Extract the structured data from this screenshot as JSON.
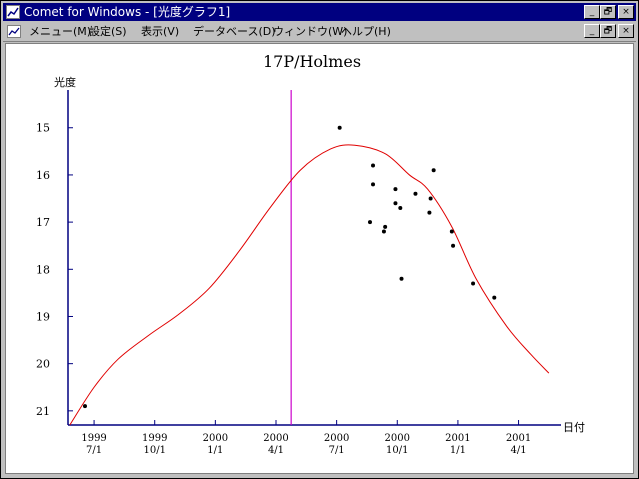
{
  "window": {
    "title": "Comet for Windows - [光度グラフ1]",
    "controls": {
      "minimize": "_",
      "restore": "🗗",
      "close": "×"
    }
  },
  "menubar": {
    "items": [
      {
        "label": "メニュー(M)"
      },
      {
        "label": "設定(S)"
      },
      {
        "label": "表示(V)"
      },
      {
        "label": "データベース(D)"
      },
      {
        "label": "ウィンドウ(W)"
      },
      {
        "label": "ヘルプ(H)"
      }
    ]
  },
  "chart_data": {
    "type": "scatter",
    "title": "17P/Holmes",
    "ylabel": "光度",
    "xlabel": "日付",
    "x_ticks": [
      {
        "year": "1999",
        "date": "7/1"
      },
      {
        "year": "1999",
        "date": "10/1"
      },
      {
        "year": "2000",
        "date": "1/1"
      },
      {
        "year": "2000",
        "date": "4/1"
      },
      {
        "year": "2000",
        "date": "7/1"
      },
      {
        "year": "2000",
        "date": "10/1"
      },
      {
        "year": "2001",
        "date": "1/1"
      },
      {
        "year": "2001",
        "date": "4/1"
      }
    ],
    "y_ticks": [
      "15",
      "16",
      "17",
      "18",
      "19",
      "20",
      "21"
    ],
    "ylim": [
      21.3,
      14.2
    ],
    "xlim": [
      -0.43,
      7.7
    ],
    "grid": false,
    "marker_x": 3.25,
    "points": [
      {
        "x": -0.15,
        "y": 20.9
      },
      {
        "x": 4.05,
        "y": 15.0
      },
      {
        "x": 4.6,
        "y": 15.8
      },
      {
        "x": 4.6,
        "y": 16.2
      },
      {
        "x": 4.55,
        "y": 17.0
      },
      {
        "x": 4.8,
        "y": 17.1
      },
      {
        "x": 4.78,
        "y": 17.2
      },
      {
        "x": 4.97,
        "y": 16.3
      },
      {
        "x": 4.97,
        "y": 16.6
      },
      {
        "x": 5.05,
        "y": 16.7
      },
      {
        "x": 5.07,
        "y": 18.2
      },
      {
        "x": 5.3,
        "y": 16.4
      },
      {
        "x": 5.53,
        "y": 16.8
      },
      {
        "x": 5.55,
        "y": 16.5
      },
      {
        "x": 5.6,
        "y": 15.9
      },
      {
        "x": 5.9,
        "y": 17.2
      },
      {
        "x": 5.92,
        "y": 17.5
      },
      {
        "x": 6.25,
        "y": 18.3
      },
      {
        "x": 6.6,
        "y": 18.6
      }
    ],
    "curve": [
      {
        "x": -0.4,
        "y": 21.3
      },
      {
        "x": 0.0,
        "y": 20.5
      },
      {
        "x": 0.4,
        "y": 19.9
      },
      {
        "x": 0.9,
        "y": 19.4
      },
      {
        "x": 1.4,
        "y": 18.95
      },
      {
        "x": 1.9,
        "y": 18.4
      },
      {
        "x": 2.4,
        "y": 17.6
      },
      {
        "x": 2.9,
        "y": 16.7
      },
      {
        "x": 3.4,
        "y": 15.9
      },
      {
        "x": 3.9,
        "y": 15.45
      },
      {
        "x": 4.3,
        "y": 15.37
      },
      {
        "x": 4.8,
        "y": 15.55
      },
      {
        "x": 5.2,
        "y": 16.0
      },
      {
        "x": 5.5,
        "y": 16.3
      },
      {
        "x": 5.9,
        "y": 17.1
      },
      {
        "x": 6.3,
        "y": 18.2
      },
      {
        "x": 6.8,
        "y": 19.2
      },
      {
        "x": 7.2,
        "y": 19.8
      },
      {
        "x": 7.5,
        "y": 20.2
      }
    ],
    "colors": {
      "axis": "#000080",
      "curve": "#e00000",
      "marker": "#cc00cc",
      "points": "#000000"
    }
  }
}
